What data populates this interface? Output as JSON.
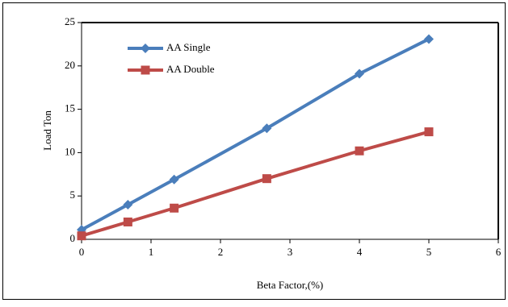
{
  "chart_data": {
    "type": "line",
    "x_label": "Beta Factor,(%)",
    "y_label": "Load Ton",
    "xlim": [
      0,
      6
    ],
    "xticks": [
      0,
      1,
      2,
      3,
      4,
      5,
      6
    ],
    "ylim": [
      0,
      25
    ],
    "yticks": [
      0,
      5,
      10,
      15,
      20,
      25
    ],
    "legend": "upper left",
    "series": [
      {
        "name": "AA Single",
        "color": "#4a7ebb",
        "marker": "diamond",
        "x": [
          0,
          0.667,
          1.333,
          2.667,
          4,
          5
        ],
        "values": [
          1.1,
          4.0,
          6.9,
          12.8,
          19.1,
          23.1
        ]
      },
      {
        "name": "AA Double",
        "color": "#be4b48",
        "marker": "square",
        "x": [
          0,
          0.667,
          1.333,
          2.667,
          4,
          5
        ],
        "values": [
          0.4,
          2.0,
          3.6,
          7.0,
          10.2,
          12.4
        ]
      }
    ]
  }
}
